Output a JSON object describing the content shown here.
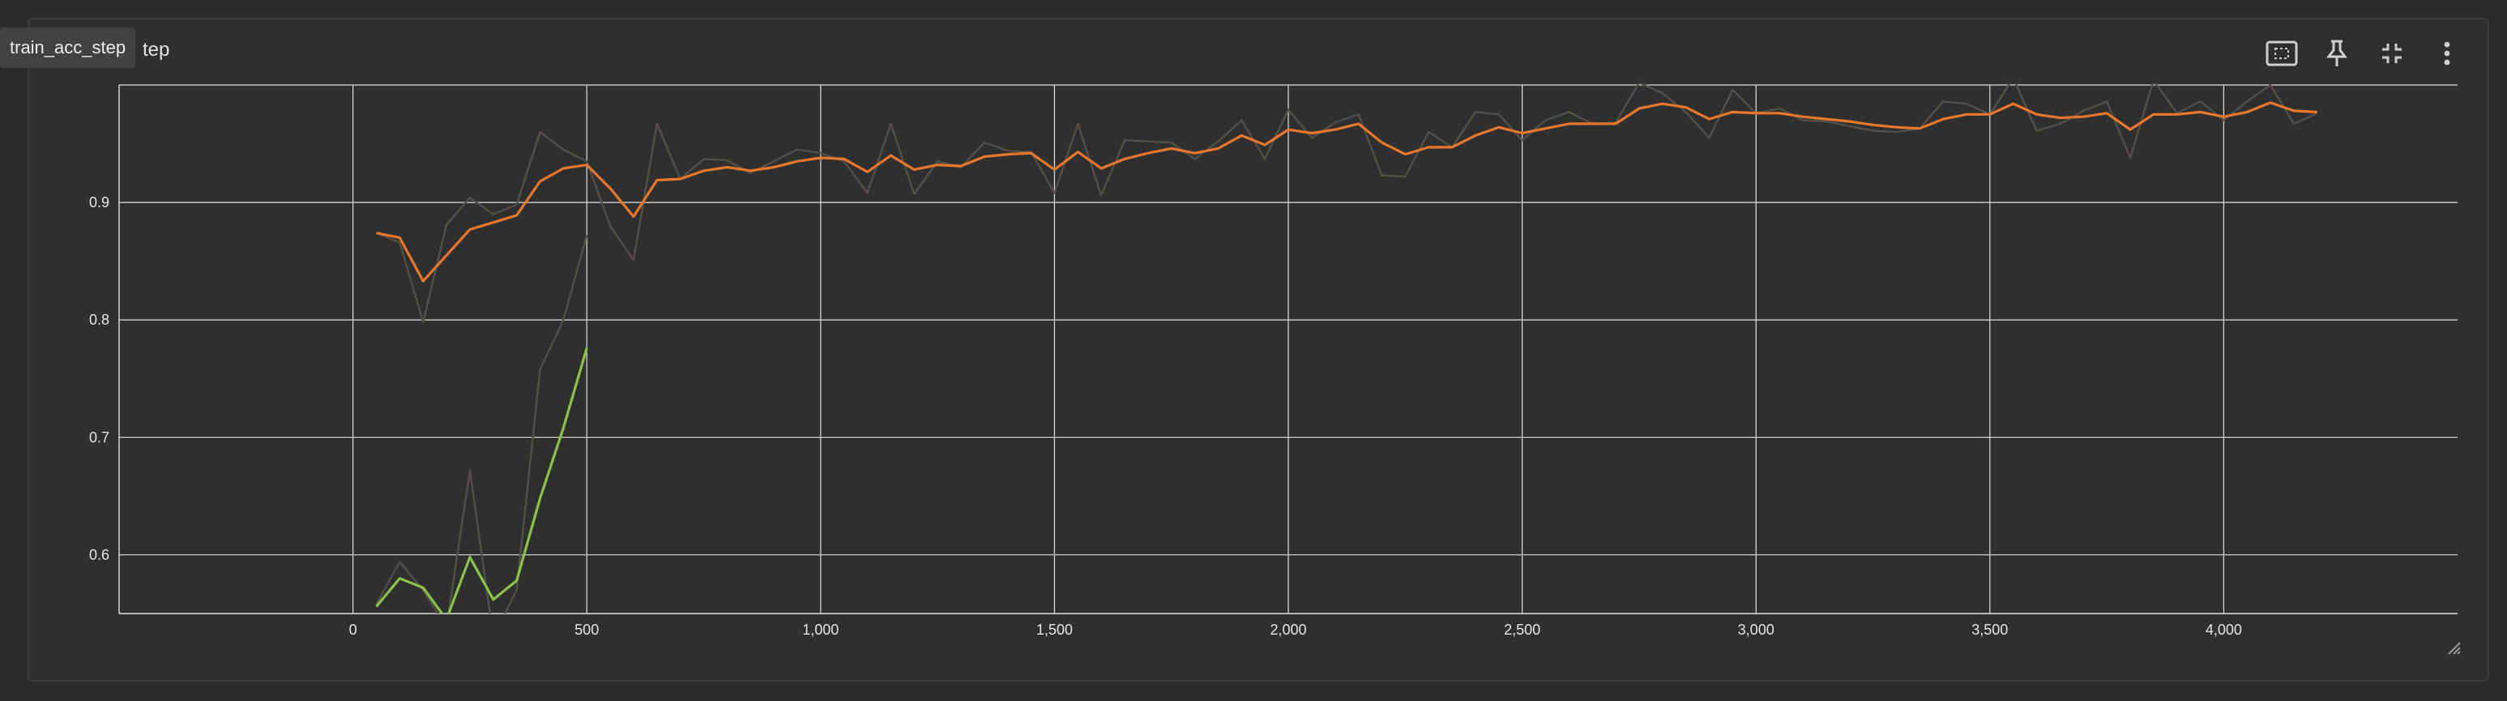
{
  "card": {
    "tooltip": "train_acc_step",
    "title_visible": "tep"
  },
  "toolbar": [
    {
      "name": "fit-domain-icon",
      "interactable": true
    },
    {
      "name": "pin-icon",
      "interactable": true
    },
    {
      "name": "collapse-icon",
      "interactable": true
    },
    {
      "name": "more-vert-icon",
      "interactable": true
    }
  ],
  "chart_data": {
    "type": "line",
    "xlim": [
      -500,
      4500
    ],
    "ylim": [
      0.55,
      1.0
    ],
    "xticks": [
      0,
      500,
      1000,
      1500,
      2000,
      2500,
      3000,
      3500,
      4000
    ],
    "xtick_labels": [
      "0",
      "500",
      "1,000",
      "1,500",
      "2,000",
      "2,500",
      "3,000",
      "3,500",
      "4,000"
    ],
    "yticks": [
      0.6,
      0.7,
      0.8,
      0.9
    ],
    "ytick_labels": [
      "0.6",
      "0.7",
      "0.8",
      "0.9"
    ],
    "grid": true,
    "colors": {
      "orange": "#e8772e",
      "green": "#8bc34a",
      "raw": "#545047",
      "grid": "#e0e0e0"
    },
    "series": [
      {
        "color": "green",
        "x": [
          50,
          100,
          150,
          200,
          250,
          300,
          350,
          400,
          450,
          500
        ],
        "smoothed": [
          0.556,
          0.58,
          0.572,
          0.545,
          0.598,
          0.562,
          0.578,
          0.648,
          0.708,
          0.776
        ],
        "raw": [
          0.558,
          0.594,
          0.57,
          0.538,
          0.672,
          0.53,
          0.57,
          0.758,
          0.8,
          0.872
        ]
      },
      {
        "color": "orange",
        "x": [
          50,
          100,
          150,
          200,
          250,
          300,
          350,
          400,
          450,
          500,
          550,
          600,
          650,
          700,
          750,
          800,
          850,
          900,
          950,
          1000,
          1050,
          1100,
          1150,
          1200,
          1250,
          1300,
          1350,
          1400,
          1450,
          1500,
          1550,
          1600,
          1650,
          1700,
          1750,
          1800,
          1850,
          1900,
          1950,
          2000,
          2050,
          2100,
          2150,
          2200,
          2250,
          2300,
          2350,
          2400,
          2450,
          2500,
          2550,
          2600,
          2650,
          2700,
          2750,
          2800,
          2850,
          2900,
          2950,
          3000,
          3050,
          3100,
          3150,
          3200,
          3250,
          3300,
          3350,
          3400,
          3450,
          3500,
          3550,
          3600,
          3650,
          3700,
          3750,
          3800,
          3850,
          3900,
          3950,
          4000,
          4050,
          4100,
          4150,
          4200
        ],
        "smoothed": [
          0.874,
          0.87,
          0.833,
          0.855,
          0.877,
          0.883,
          0.889,
          0.918,
          0.929,
          0.932,
          0.912,
          0.888,
          0.919,
          0.92,
          0.927,
          0.93,
          0.927,
          0.93,
          0.935,
          0.938,
          0.937,
          0.926,
          0.94,
          0.928,
          0.932,
          0.931,
          0.939,
          0.941,
          0.942,
          0.928,
          0.943,
          0.929,
          0.937,
          0.942,
          0.946,
          0.942,
          0.946,
          0.957,
          0.949,
          0.962,
          0.959,
          0.962,
          0.967,
          0.951,
          0.941,
          0.947,
          0.947,
          0.957,
          0.964,
          0.959,
          0.963,
          0.967,
          0.967,
          0.967,
          0.98,
          0.984,
          0.981,
          0.971,
          0.977,
          0.976,
          0.976,
          0.973,
          0.971,
          0.969,
          0.966,
          0.964,
          0.963,
          0.971,
          0.975,
          0.975,
          0.984,
          0.975,
          0.972,
          0.973,
          0.976,
          0.962,
          0.975,
          0.975,
          0.977,
          0.973,
          0.977,
          0.985,
          0.978,
          0.977
        ],
        "raw": [
          0.874,
          0.866,
          0.798,
          0.881,
          0.904,
          0.89,
          0.898,
          0.96,
          0.945,
          0.935,
          0.88,
          0.851,
          0.967,
          0.92,
          0.937,
          0.936,
          0.925,
          0.935,
          0.945,
          0.942,
          0.935,
          0.908,
          0.967,
          0.907,
          0.935,
          0.93,
          0.951,
          0.944,
          0.943,
          0.908,
          0.967,
          0.906,
          0.953,
          0.952,
          0.951,
          0.937,
          0.952,
          0.97,
          0.937,
          0.979,
          0.955,
          0.968,
          0.975,
          0.923,
          0.922,
          0.96,
          0.947,
          0.977,
          0.975,
          0.953,
          0.97,
          0.977,
          0.967,
          0.968,
          1.002,
          0.993,
          0.977,
          0.955,
          0.996,
          0.976,
          0.98,
          0.97,
          0.969,
          0.965,
          0.961,
          0.96,
          0.963,
          0.986,
          0.984,
          0.975,
          1.006,
          0.961,
          0.967,
          0.978,
          0.986,
          0.938,
          1.004,
          0.976,
          0.986,
          0.97,
          0.986,
          1.0,
          0.967,
          0.976
        ]
      }
    ]
  }
}
